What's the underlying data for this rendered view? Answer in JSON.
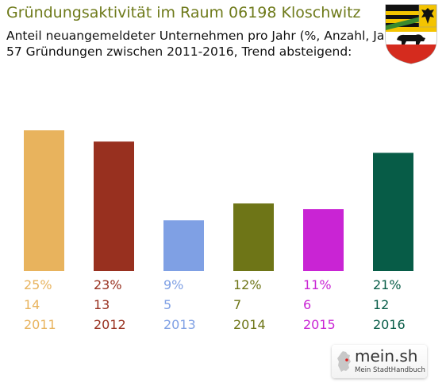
{
  "header": {
    "title": "Gründungsaktivität im Raum 06198 Kloschwitz",
    "subtitle_line1": "Anteil neuangemeldeter Unternehmen pro Jahr (%, Anzahl, Jahr)",
    "subtitle_line2": "57 Gründungen zwischen 2011-2016, Trend absteigend:"
  },
  "brand": {
    "name": "mein.sh",
    "tagline": "Mein StadtHandbuch"
  },
  "chart_data": {
    "type": "bar",
    "categories": [
      "2011",
      "2012",
      "2013",
      "2014",
      "2015",
      "2016"
    ],
    "values": [
      25,
      23,
      9,
      12,
      11,
      21
    ],
    "counts": [
      14,
      13,
      5,
      7,
      6,
      12
    ],
    "percent_labels": [
      "25%",
      "23%",
      "9%",
      "12%",
      "11%",
      "21%"
    ],
    "count_labels": [
      "14",
      "13",
      "5",
      "7",
      "6",
      "12"
    ],
    "colors": [
      "#e8b35d",
      "#98301f",
      "#7fa0e4",
      "#6e7517",
      "#c924d4",
      "#075c47"
    ],
    "ylim": [
      0,
      25
    ],
    "grid": false,
    "legend": "none"
  }
}
